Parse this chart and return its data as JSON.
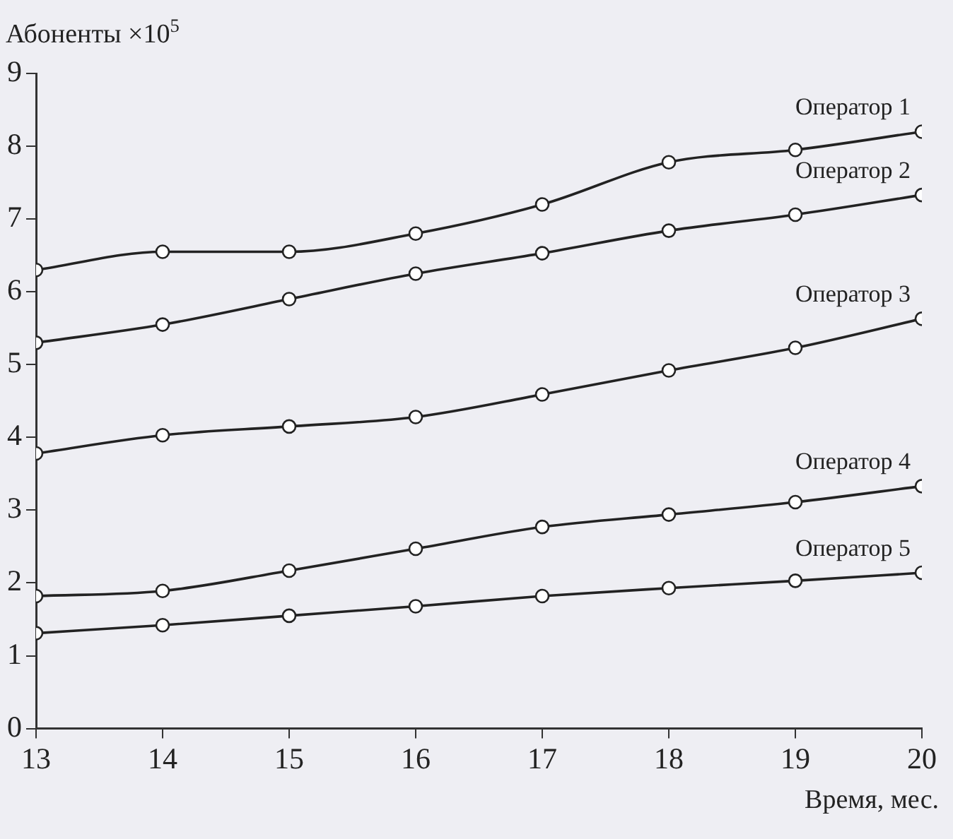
{
  "chart_data": {
    "type": "line",
    "ylabel": "Абоненты ×10$^{5}$",
    "xlabel": "Время, мес.",
    "x": [
      13,
      14,
      15,
      16,
      17,
      18,
      19,
      20
    ],
    "series": [
      {
        "name": "Оператор 1",
        "color": "#222222",
        "values": [
          6.3,
          6.55,
          6.55,
          6.8,
          7.2,
          7.78,
          7.95,
          8.2
        ]
      },
      {
        "name": "Оператор 2",
        "color": "#222222",
        "values": [
          5.3,
          5.55,
          5.9,
          6.25,
          6.53,
          6.84,
          7.06,
          7.33
        ]
      },
      {
        "name": "Оператор 3",
        "color": "#222222",
        "values": [
          3.78,
          4.03,
          4.15,
          4.28,
          4.59,
          4.92,
          5.23,
          5.63
        ]
      },
      {
        "name": "Оператор 4",
        "color": "#222222",
        "values": [
          1.82,
          1.89,
          2.17,
          2.47,
          2.77,
          2.94,
          3.11,
          3.33
        ]
      },
      {
        "name": "Оператор 5",
        "color": "#222222",
        "values": [
          1.31,
          1.42,
          1.55,
          1.68,
          1.82,
          1.93,
          2.03,
          2.14
        ]
      }
    ],
    "xlim": [
      13,
      20
    ],
    "xticks": [
      13,
      14,
      15,
      16,
      17,
      18,
      19,
      20
    ],
    "ylim": [
      0,
      9
    ],
    "yticks": [
      0,
      1,
      2,
      3,
      4,
      5,
      6,
      7,
      8,
      9
    ],
    "grid": false,
    "legend": false,
    "marker": "circle",
    "line_style": "solid"
  }
}
